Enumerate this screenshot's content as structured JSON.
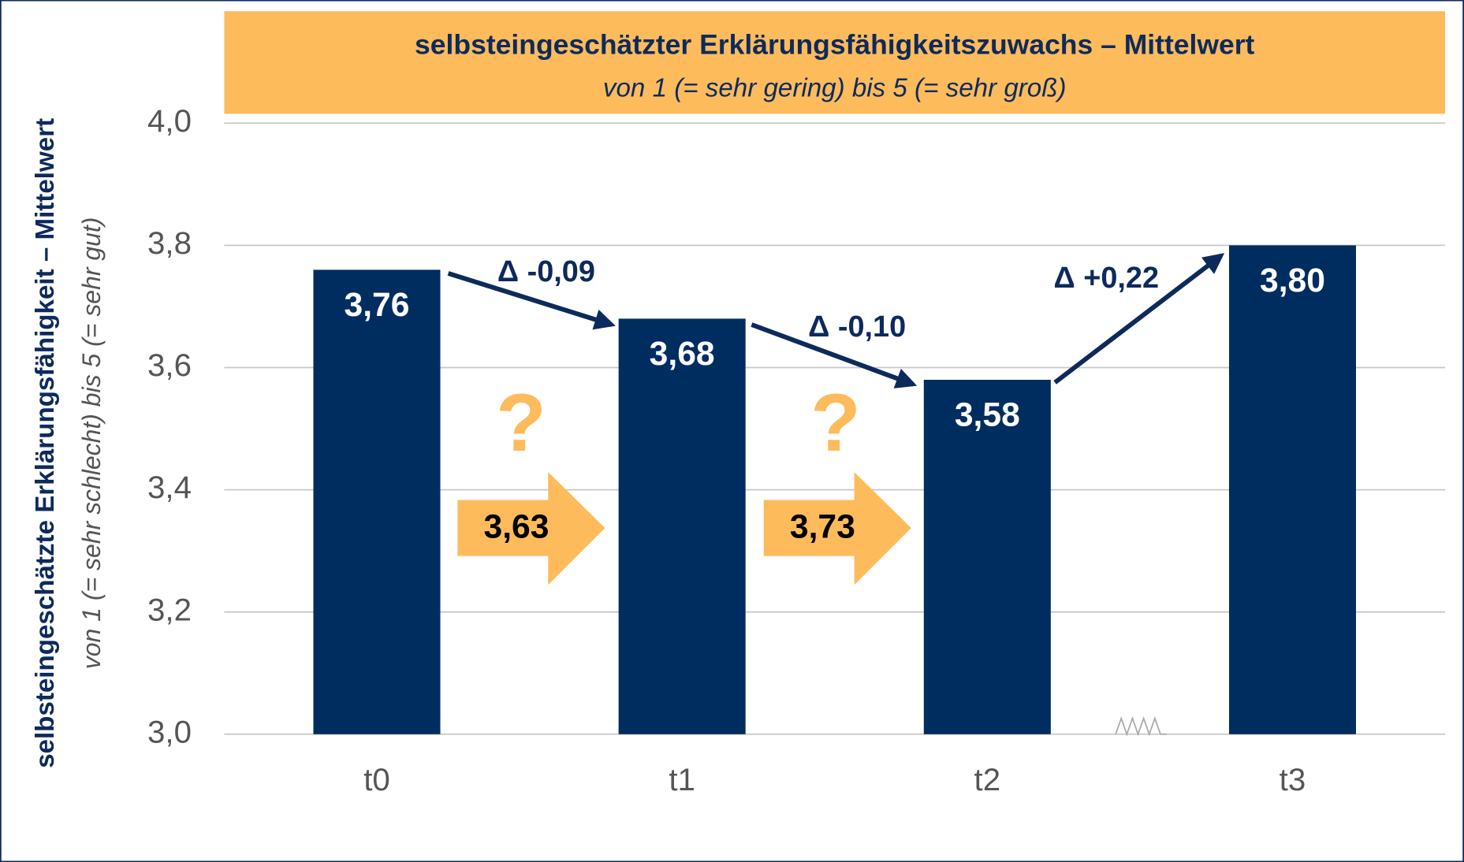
{
  "chart_data": {
    "type": "bar",
    "title": "selbsteingeschätzter Erklärungsfähigkeitszuwachs – Mittelwert",
    "subtitle": "von 1 (= sehr gering) bis 5 (= sehr groß)",
    "y_label": "selbsteingeschätzte Erklärungsfähigkeit – Mittelwert",
    "y_sublabel": "von 1 (= sehr schlecht) bis 5 (= sehr gut)",
    "categories": [
      "t0",
      "t1",
      "t2",
      "t3"
    ],
    "values": [
      3.76,
      3.68,
      3.58,
      3.8
    ],
    "value_labels": [
      "3,76",
      "3,68",
      "3,58",
      "3,80"
    ],
    "color": "#002d60",
    "ylim": [
      3.0,
      4.0
    ],
    "yticks": [
      {
        "value": 3.0,
        "label": "3,0"
      },
      {
        "value": 3.2,
        "label": "3,2"
      },
      {
        "value": 3.4,
        "label": "3,4"
      },
      {
        "value": 3.6,
        "label": "3,6"
      },
      {
        "value": 3.8,
        "label": "3,8"
      },
      {
        "value": 4.0,
        "label": "4,0"
      }
    ],
    "grid": true,
    "delta_annotations": [
      "Δ -0,09",
      "Δ -0,10",
      "Δ +0,22"
    ],
    "question_annotations": [
      "?",
      "?"
    ],
    "arrow_annotations": [
      "3,63",
      "3,73"
    ]
  }
}
